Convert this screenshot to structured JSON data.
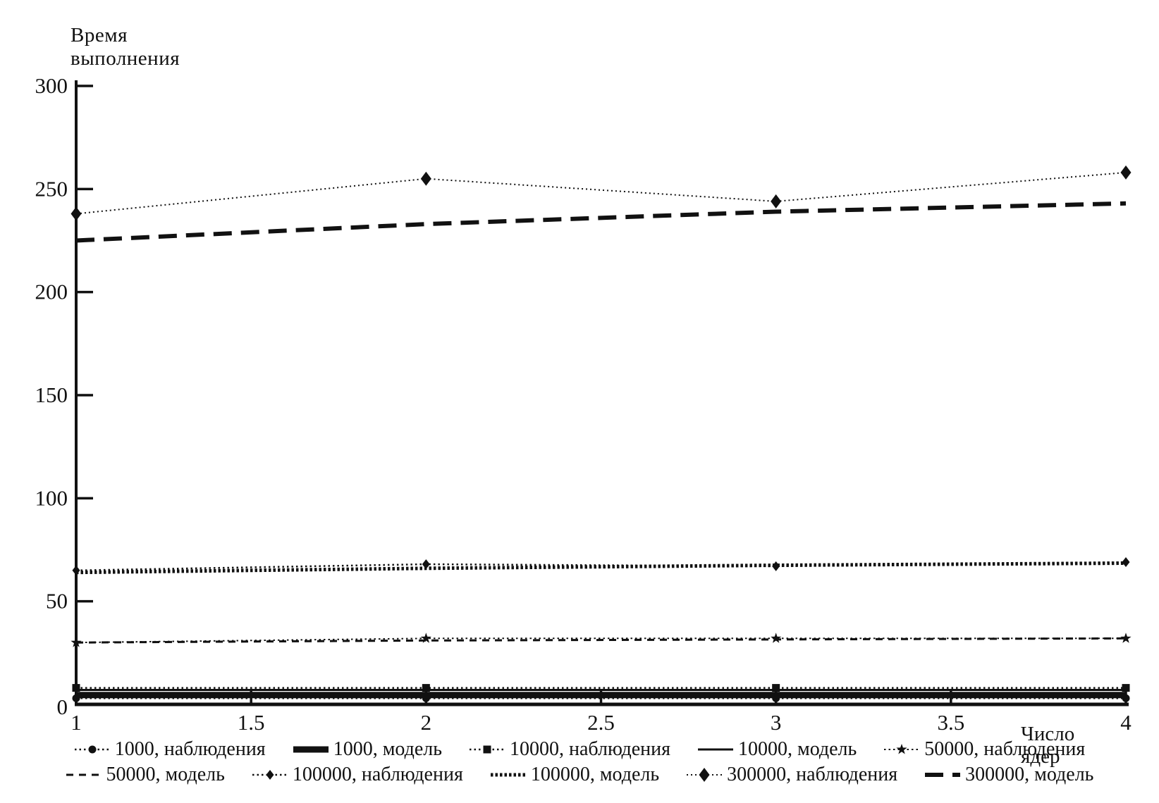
{
  "figure": {
    "background": "#ffffff",
    "ink_color": "#111111"
  },
  "chart_data": {
    "type": "line",
    "title": "",
    "ylabel_lines": [
      "Время",
      "выполнения"
    ],
    "xlabel_lines": [
      "Число",
      "ядер"
    ],
    "x": [
      1,
      2,
      3,
      4
    ],
    "xticks": [
      1,
      1.5,
      2,
      2.5,
      3,
      3.5,
      4
    ],
    "yticks": [
      0,
      50,
      100,
      150,
      200,
      250,
      300
    ],
    "xlim": [
      1,
      4
    ],
    "ylim": [
      0,
      300
    ],
    "grid": false,
    "legend_position": "bottom",
    "series": [
      {
        "name": "1000, наблюдения",
        "values": [
          3,
          3,
          3,
          3
        ],
        "line_style": "dotted",
        "marker": "circle",
        "width": 2.5
      },
      {
        "name": "1000, модель",
        "values": [
          4.5,
          4.5,
          4.5,
          4.5
        ],
        "line_style": "solid",
        "marker": "none",
        "width": 9
      },
      {
        "name": "10000, наблюдения",
        "values": [
          8,
          8,
          8,
          8
        ],
        "line_style": "dotted",
        "marker": "square",
        "width": 2.5
      },
      {
        "name": "10000, модель",
        "values": [
          7,
          7,
          7,
          7
        ],
        "line_style": "solid",
        "marker": "none",
        "width": 3
      },
      {
        "name": "50000, наблюдения",
        "values": [
          30,
          32,
          32,
          32
        ],
        "line_style": "dotted",
        "marker": "star",
        "width": 2
      },
      {
        "name": "50000, модель",
        "values": [
          30,
          31,
          31.5,
          32
        ],
        "line_style": "dashed",
        "marker": "none",
        "width": 3
      },
      {
        "name": "100000, наблюдения",
        "values": [
          65,
          68,
          67,
          69
        ],
        "line_style": "dotted",
        "marker": "diamond-small",
        "width": 2.5
      },
      {
        "name": "100000, модель",
        "values": [
          64,
          66,
          67.5,
          68.5
        ],
        "line_style": "dense-dotted",
        "marker": "none",
        "width": 5
      },
      {
        "name": "300000, наблюдения",
        "values": [
          238,
          255,
          244,
          258
        ],
        "line_style": "fine-dotted",
        "marker": "diamond",
        "width": 2
      },
      {
        "name": "300000, модель",
        "values": [
          225,
          233,
          239,
          243
        ],
        "line_style": "long-dashed",
        "marker": "none",
        "width": 6
      }
    ]
  }
}
